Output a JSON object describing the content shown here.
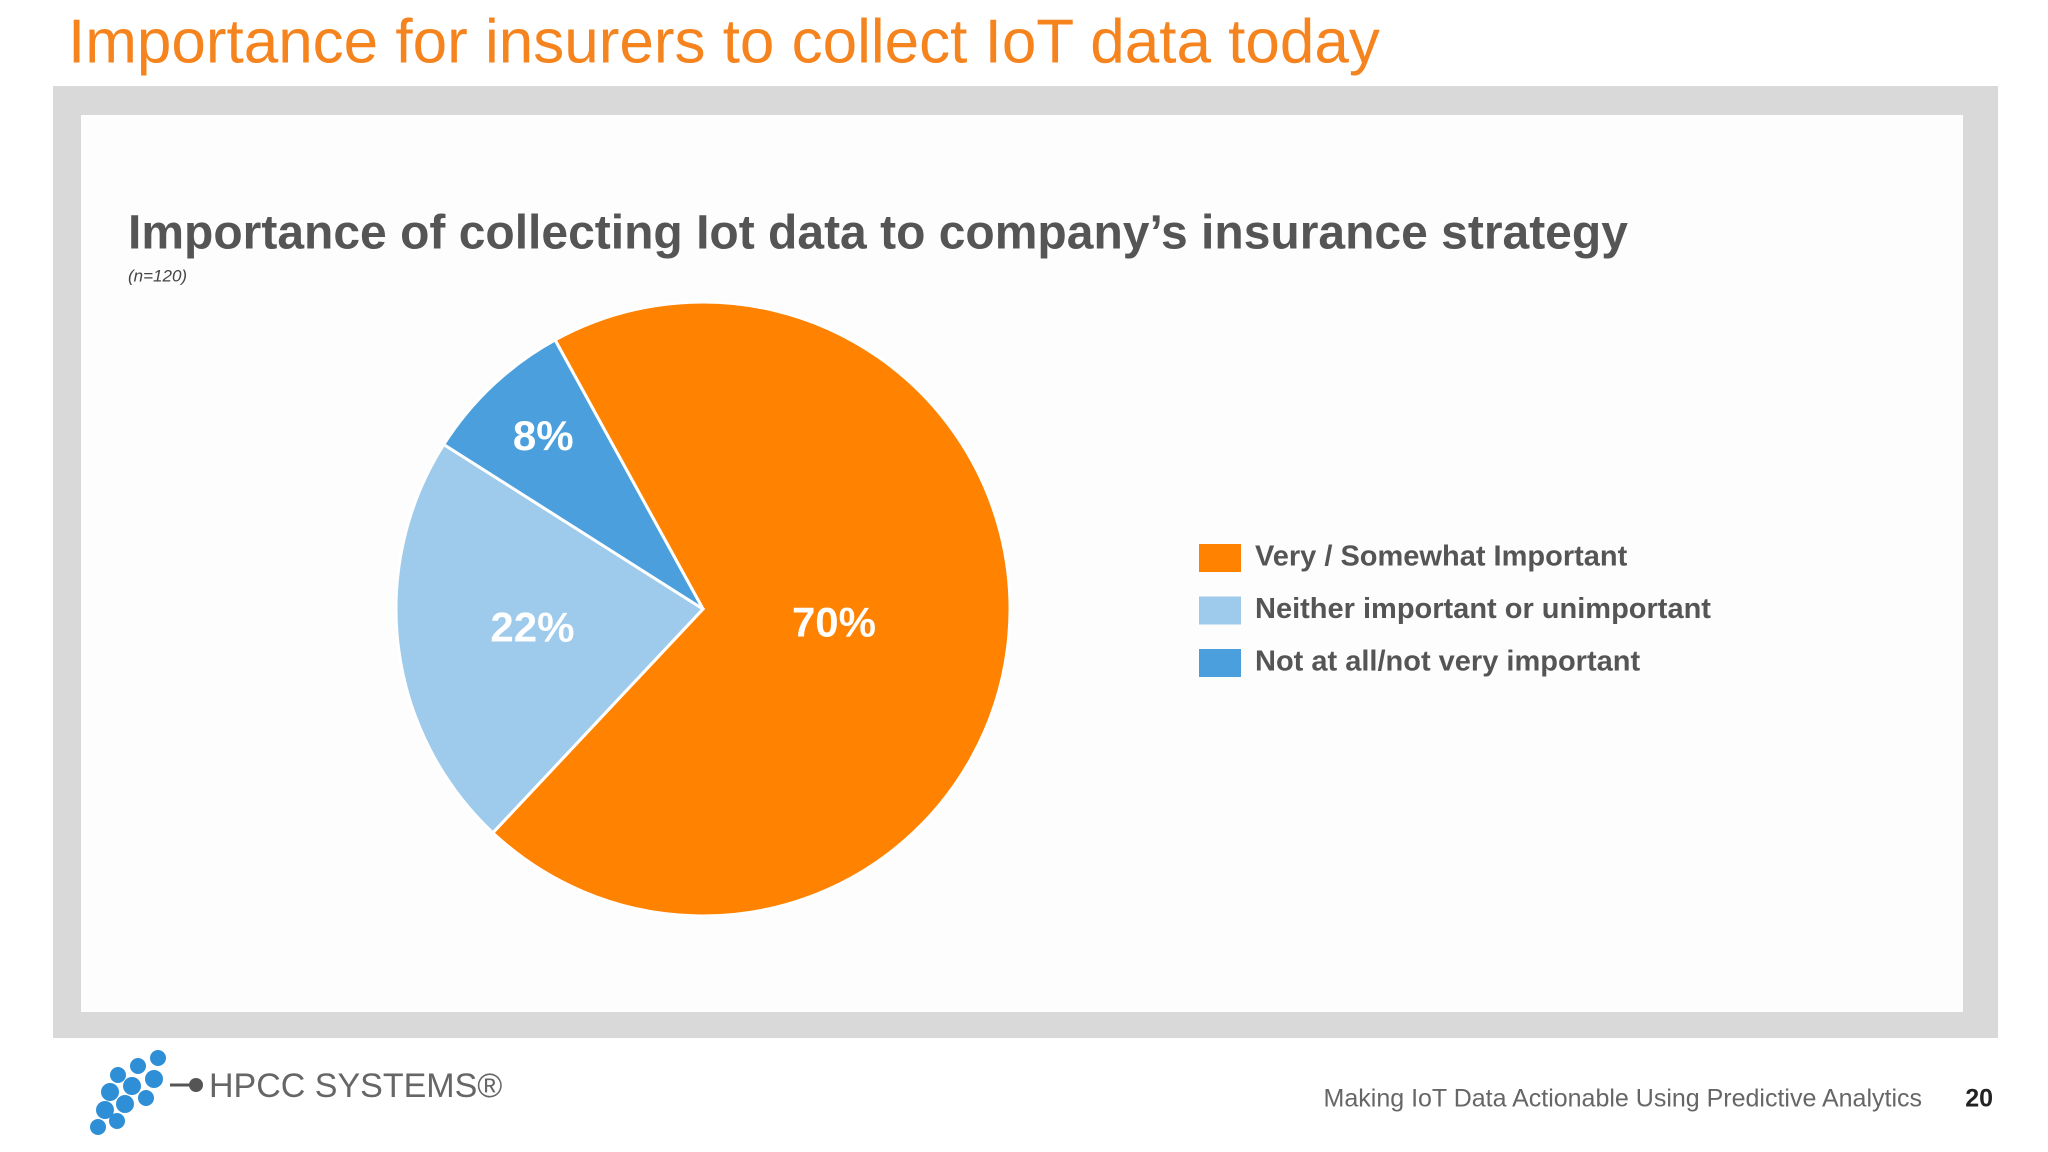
{
  "slide_title": "Importance for insurers to collect IoT data today",
  "chart_data": {
    "type": "pie",
    "title": "Importance of collecting Iot data to company’s insurance strategy",
    "subtitle": "(n=120)",
    "categories": [
      "Very / Somewhat Important",
      "Neither important or unimportant",
      "Not at all/not very important"
    ],
    "values": [
      70,
      22,
      8
    ],
    "value_labels": [
      "70%",
      "22%",
      "8%"
    ],
    "colors": [
      "#ff8200",
      "#9ecaec",
      "#4a9fdc"
    ],
    "legend": "right"
  },
  "footer": {
    "logo": "HPCC SYSTEMS®",
    "caption": "Making IoT Data Actionable Using Predictive Analytics",
    "page": "20"
  }
}
